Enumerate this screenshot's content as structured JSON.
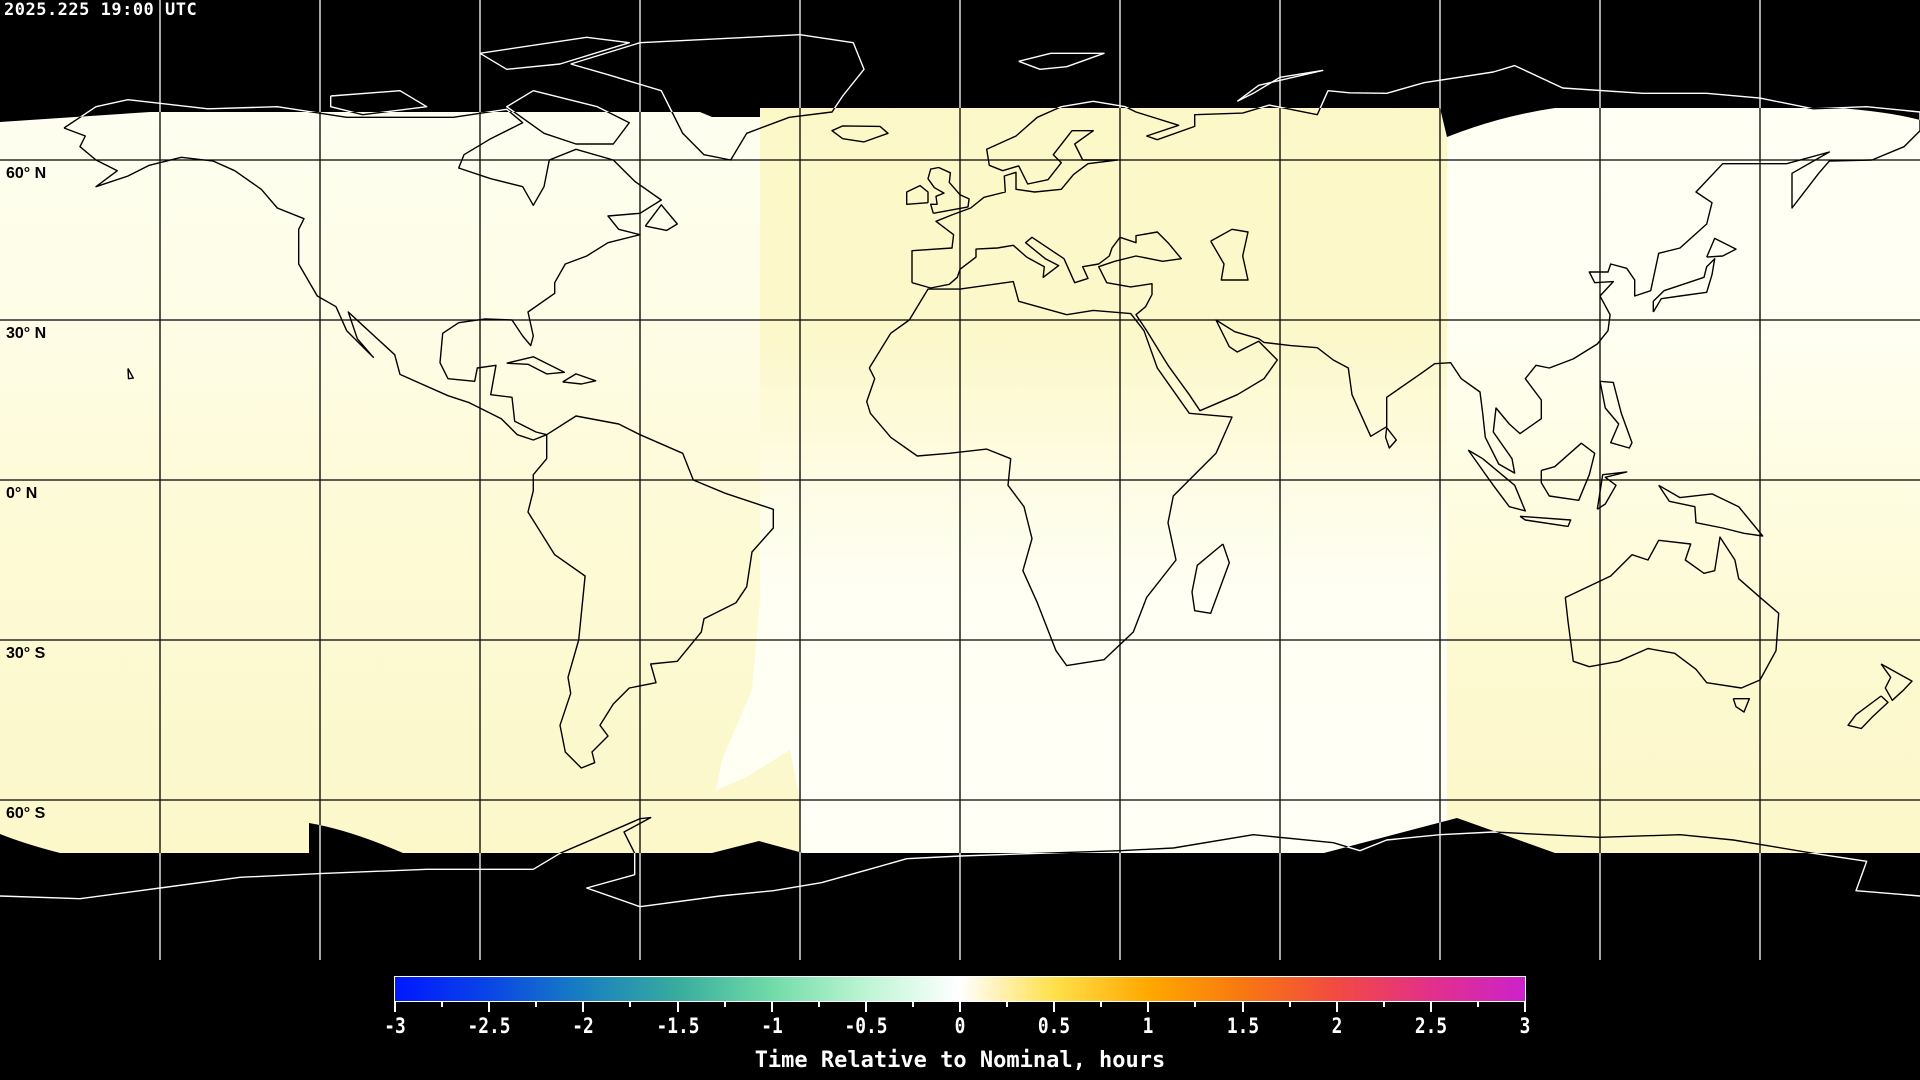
{
  "header": {
    "timestamp": "2025.225 19:00 UTC"
  },
  "map": {
    "projection": "equirectangular",
    "lon_range": [
      -180,
      180
    ],
    "lat_range": [
      -90,
      90
    ],
    "grid_spacing_deg": 30,
    "lat_labels": [
      "60° N",
      "30° N",
      "0° N",
      "30° S",
      "60° S"
    ],
    "colors": {
      "no_data": "#000000",
      "early_late_slight": "#fcf8c8",
      "nominal": "#fffff4"
    }
  },
  "colorbar": {
    "title": "Time Relative to Nominal, hours",
    "range": [
      -3,
      3
    ],
    "tick_labels": [
      "-3",
      "-2.5",
      "-2",
      "-1.5",
      "-1",
      "-0.5",
      "0",
      "0.5",
      "1",
      "1.5",
      "2",
      "2.5",
      "3"
    ],
    "stops": [
      {
        "value": -3,
        "color": "#0018ff"
      },
      {
        "value": -2.5,
        "color": "#0a45e6"
      },
      {
        "value": -2,
        "color": "#1880c0"
      },
      {
        "value": -1.5,
        "color": "#38ac9e"
      },
      {
        "value": -1,
        "color": "#70dba8"
      },
      {
        "value": -0.5,
        "color": "#bdf5d4"
      },
      {
        "value": 0,
        "color": "#ffffff"
      },
      {
        "value": 0.5,
        "color": "#ffe04a"
      },
      {
        "value": 1,
        "color": "#ffa800"
      },
      {
        "value": 1.5,
        "color": "#f87810"
      },
      {
        "value": 2,
        "color": "#f24a42"
      },
      {
        "value": 2.5,
        "color": "#e2308a"
      },
      {
        "value": 3,
        "color": "#cc22cc"
      }
    ]
  }
}
